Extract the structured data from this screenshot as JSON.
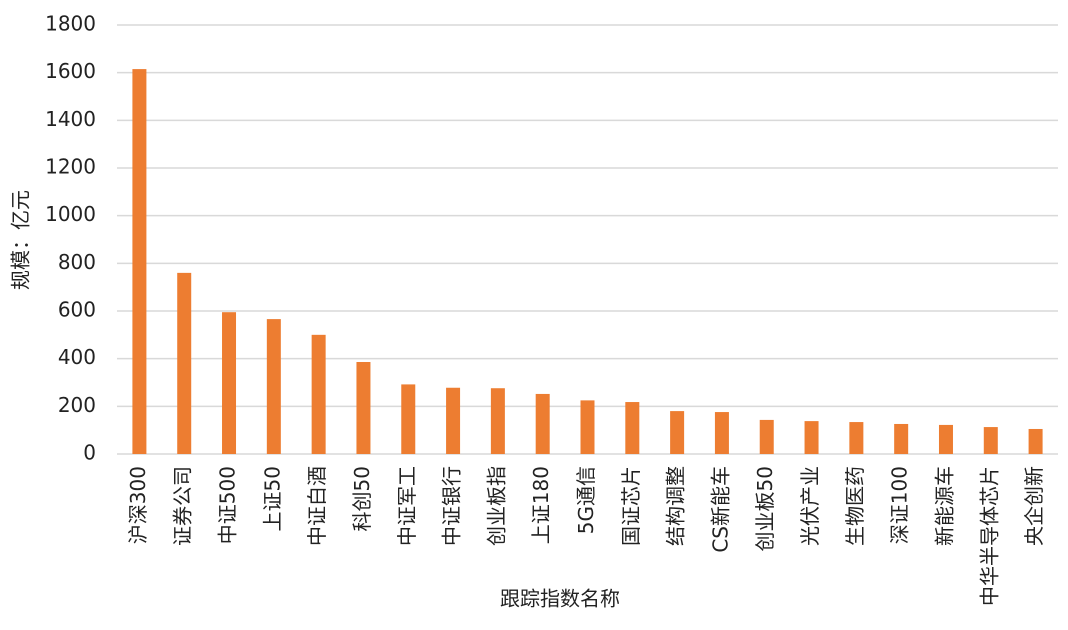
{
  "chart_data": {
    "type": "bar",
    "x_label": "跟踪指数名称",
    "y_label": "规模：亿元",
    "categories": [
      "沪深300",
      "证券公司",
      "中证500",
      "上证50",
      "中证白酒",
      "科创50",
      "中证军工",
      "中证银行",
      "创业板指",
      "上证180",
      "5G通信",
      "国证芯片",
      "结构调整",
      "CS新能车",
      "创业板50",
      "光伏产业",
      "生物医药",
      "深证100",
      "新能源车",
      "中华半导体芯片",
      "央企创新"
    ],
    "values": [
      1615,
      760,
      595,
      566,
      500,
      386,
      292,
      278,
      276,
      252,
      225,
      218,
      180,
      176,
      143,
      138,
      134,
      126,
      122,
      113,
      105
    ],
    "color": "#ed7d31",
    "ylim": [
      0,
      1800
    ],
    "yticks": [
      0,
      200,
      400,
      600,
      800,
      1000,
      1200,
      1400,
      1600,
      1800
    ],
    "grid": true
  }
}
